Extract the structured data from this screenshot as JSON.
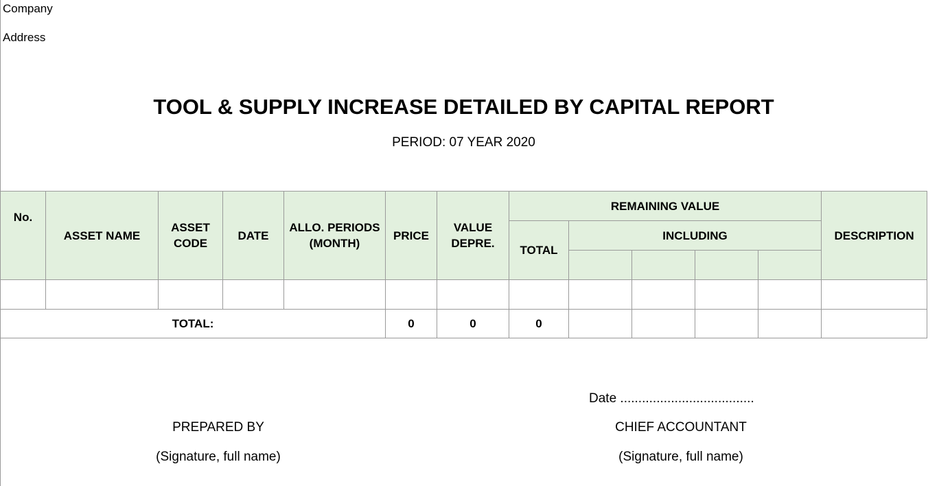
{
  "header": {
    "company_label": "Company",
    "address_label": "Address",
    "title": "TOOL & SUPPLY INCREASE DETAILED BY CAPITAL REPORT",
    "period": "PERIOD: 07 YEAR 2020"
  },
  "table": {
    "columns": {
      "no": "No.",
      "asset_name": "ASSET NAME",
      "asset_code_line1": "ASSET",
      "asset_code_line2": "CODE",
      "date": "DATE",
      "allo_line1": "ALLO. PERIODS",
      "allo_line2": "(MONTH)",
      "price": "PRICE",
      "value_line1": "VALUE",
      "value_line2": "DEPRE.",
      "remaining_value": "REMAINING VALUE",
      "total": "TOTAL",
      "including": "INCLUDING",
      "description": "DESCRIPTION"
    },
    "total_row": {
      "label": "TOTAL:",
      "price": "0",
      "value_depre": "0",
      "remaining_total": "0"
    },
    "header_bg": "#e2f0de"
  },
  "footer": {
    "date_line": "Date .....................................",
    "prepared_by": "PREPARED BY",
    "prepared_signature": "(Signature, full name)",
    "chief_accountant": "CHIEF ACCOUNTANT",
    "chief_signature": "(Signature, full name)"
  }
}
